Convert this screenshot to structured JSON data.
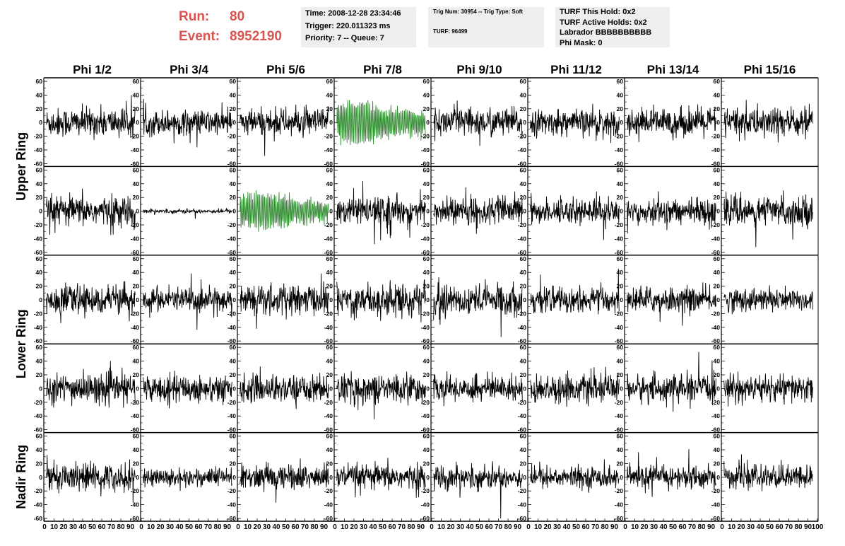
{
  "header": {
    "run_label": "Run:",
    "run_value": "80",
    "event_label": "Event:",
    "event_value": "8952190",
    "time_info": [
      "Time: 2008-12-28 23:34:46",
      "Trigger: 220.011323 ms",
      "Priority: 7 -- Queue: 7"
    ],
    "trig_info": [
      "Trig Num: 30954 -- Trig Type: Soft",
      "TURF: 96499"
    ],
    "turf_info": [
      "TURF This Hold: 0x2",
      "TURF Active Holds: 0x2",
      "Labrador BBBBBBBBBB",
      "Phi Mask: 0"
    ]
  },
  "chart_data": {
    "type": "line",
    "columns": [
      "Phi 1/2",
      "Phi 3/4",
      "Phi 5/6",
      "Phi 7/8",
      "Phi 9/10",
      "Phi 11/12",
      "Phi 13/14",
      "Phi 15/16"
    ],
    "ring_labels": [
      {
        "label": "Upper Ring",
        "rows": [
          0,
          1
        ]
      },
      {
        "label": "Lower Ring",
        "rows": [
          2,
          3
        ]
      },
      {
        "label": "Nadir Ring",
        "rows": [
          4
        ]
      }
    ],
    "rows": 5,
    "xlim": [
      0,
      100
    ],
    "ylim": [
      -60,
      60
    ],
    "xticks": [
      0,
      10,
      20,
      30,
      40,
      50,
      60,
      70,
      80,
      90,
      100
    ],
    "yticks": [
      -60,
      -40,
      -20,
      0,
      20,
      40,
      60
    ],
    "colors": {
      "normal": "#000000",
      "highlight": "#2e8b2e"
    },
    "samples_per_trace": 260,
    "highlighted_panels": [
      [
        0,
        3
      ],
      [
        1,
        2
      ]
    ],
    "panel_amplitudes": [
      [
        14,
        12,
        13,
        30,
        14,
        12,
        13,
        15
      ],
      [
        14,
        2,
        25,
        13,
        13,
        12,
        12,
        14
      ],
      [
        13,
        12,
        14,
        16,
        15,
        12,
        12,
        11
      ],
      [
        14,
        13,
        13,
        14,
        12,
        13,
        13,
        13
      ],
      [
        13,
        9,
        12,
        12,
        11,
        10,
        11,
        11
      ]
    ]
  }
}
